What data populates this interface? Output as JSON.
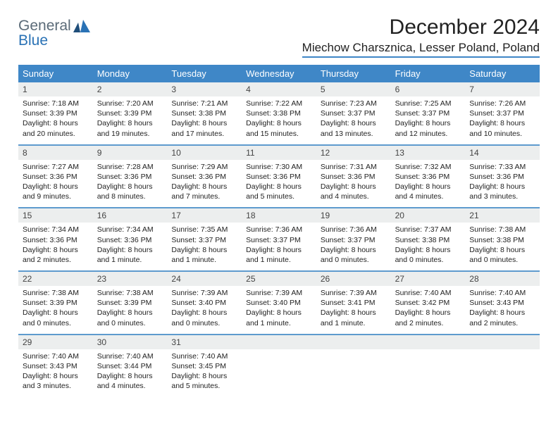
{
  "logo": {
    "textGray": "General",
    "textBlue": "Blue"
  },
  "header": {
    "monthTitle": "December 2024",
    "location": "Miechow Charsznica, Lesser Poland, Poland"
  },
  "colors": {
    "headerBar": "#3f87c7",
    "weekDivider": "#5e9bce",
    "dayNumBg": "#eceeee",
    "logoGray": "#5b6b78",
    "logoBlue": "#2a72b5",
    "background": "#ffffff",
    "text": "#222222"
  },
  "dayNames": [
    "Sunday",
    "Monday",
    "Tuesday",
    "Wednesday",
    "Thursday",
    "Friday",
    "Saturday"
  ],
  "weeks": [
    [
      {
        "n": "1",
        "sr": "7:18 AM",
        "ss": "3:39 PM",
        "dl": "8 hours and 20 minutes."
      },
      {
        "n": "2",
        "sr": "7:20 AM",
        "ss": "3:39 PM",
        "dl": "8 hours and 19 minutes."
      },
      {
        "n": "3",
        "sr": "7:21 AM",
        "ss": "3:38 PM",
        "dl": "8 hours and 17 minutes."
      },
      {
        "n": "4",
        "sr": "7:22 AM",
        "ss": "3:38 PM",
        "dl": "8 hours and 15 minutes."
      },
      {
        "n": "5",
        "sr": "7:23 AM",
        "ss": "3:37 PM",
        "dl": "8 hours and 13 minutes."
      },
      {
        "n": "6",
        "sr": "7:25 AM",
        "ss": "3:37 PM",
        "dl": "8 hours and 12 minutes."
      },
      {
        "n": "7",
        "sr": "7:26 AM",
        "ss": "3:37 PM",
        "dl": "8 hours and 10 minutes."
      }
    ],
    [
      {
        "n": "8",
        "sr": "7:27 AM",
        "ss": "3:36 PM",
        "dl": "8 hours and 9 minutes."
      },
      {
        "n": "9",
        "sr": "7:28 AM",
        "ss": "3:36 PM",
        "dl": "8 hours and 8 minutes."
      },
      {
        "n": "10",
        "sr": "7:29 AM",
        "ss": "3:36 PM",
        "dl": "8 hours and 7 minutes."
      },
      {
        "n": "11",
        "sr": "7:30 AM",
        "ss": "3:36 PM",
        "dl": "8 hours and 5 minutes."
      },
      {
        "n": "12",
        "sr": "7:31 AM",
        "ss": "3:36 PM",
        "dl": "8 hours and 4 minutes."
      },
      {
        "n": "13",
        "sr": "7:32 AM",
        "ss": "3:36 PM",
        "dl": "8 hours and 4 minutes."
      },
      {
        "n": "14",
        "sr": "7:33 AM",
        "ss": "3:36 PM",
        "dl": "8 hours and 3 minutes."
      }
    ],
    [
      {
        "n": "15",
        "sr": "7:34 AM",
        "ss": "3:36 PM",
        "dl": "8 hours and 2 minutes."
      },
      {
        "n": "16",
        "sr": "7:34 AM",
        "ss": "3:36 PM",
        "dl": "8 hours and 1 minute."
      },
      {
        "n": "17",
        "sr": "7:35 AM",
        "ss": "3:37 PM",
        "dl": "8 hours and 1 minute."
      },
      {
        "n": "18",
        "sr": "7:36 AM",
        "ss": "3:37 PM",
        "dl": "8 hours and 1 minute."
      },
      {
        "n": "19",
        "sr": "7:36 AM",
        "ss": "3:37 PM",
        "dl": "8 hours and 0 minutes."
      },
      {
        "n": "20",
        "sr": "7:37 AM",
        "ss": "3:38 PM",
        "dl": "8 hours and 0 minutes."
      },
      {
        "n": "21",
        "sr": "7:38 AM",
        "ss": "3:38 PM",
        "dl": "8 hours and 0 minutes."
      }
    ],
    [
      {
        "n": "22",
        "sr": "7:38 AM",
        "ss": "3:39 PM",
        "dl": "8 hours and 0 minutes."
      },
      {
        "n": "23",
        "sr": "7:38 AM",
        "ss": "3:39 PM",
        "dl": "8 hours and 0 minutes."
      },
      {
        "n": "24",
        "sr": "7:39 AM",
        "ss": "3:40 PM",
        "dl": "8 hours and 0 minutes."
      },
      {
        "n": "25",
        "sr": "7:39 AM",
        "ss": "3:40 PM",
        "dl": "8 hours and 1 minute."
      },
      {
        "n": "26",
        "sr": "7:39 AM",
        "ss": "3:41 PM",
        "dl": "8 hours and 1 minute."
      },
      {
        "n": "27",
        "sr": "7:40 AM",
        "ss": "3:42 PM",
        "dl": "8 hours and 2 minutes."
      },
      {
        "n": "28",
        "sr": "7:40 AM",
        "ss": "3:43 PM",
        "dl": "8 hours and 2 minutes."
      }
    ],
    [
      {
        "n": "29",
        "sr": "7:40 AM",
        "ss": "3:43 PM",
        "dl": "8 hours and 3 minutes."
      },
      {
        "n": "30",
        "sr": "7:40 AM",
        "ss": "3:44 PM",
        "dl": "8 hours and 4 minutes."
      },
      {
        "n": "31",
        "sr": "7:40 AM",
        "ss": "3:45 PM",
        "dl": "8 hours and 5 minutes."
      },
      null,
      null,
      null,
      null
    ]
  ],
  "labels": {
    "sunrise": "Sunrise:",
    "sunset": "Sunset:",
    "daylight": "Daylight:"
  }
}
